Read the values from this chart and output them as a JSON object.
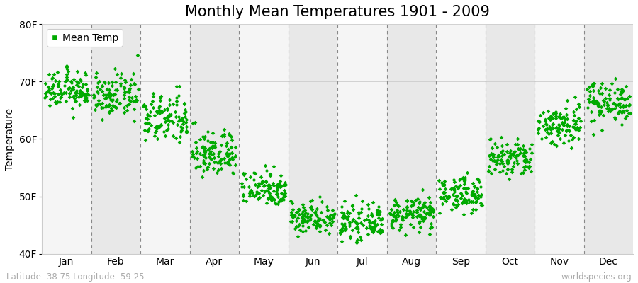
{
  "title": "Monthly Mean Temperatures 1901 - 2009",
  "ylabel": "Temperature",
  "ylim": [
    40,
    80
  ],
  "yticks": [
    40,
    50,
    60,
    70,
    80
  ],
  "ytick_labels": [
    "40F",
    "50F",
    "60F",
    "70F",
    "80F"
  ],
  "months": [
    "Jan",
    "Feb",
    "Mar",
    "Apr",
    "May",
    "Jun",
    "Jul",
    "Aug",
    "Sep",
    "Oct",
    "Nov",
    "Dec"
  ],
  "month_means_f": [
    68.5,
    67.5,
    63.5,
    57.5,
    51.5,
    46.5,
    45.5,
    47.0,
    50.5,
    56.5,
    62.5,
    66.5
  ],
  "month_stds_f": [
    1.6,
    1.8,
    2.2,
    2.0,
    1.6,
    1.4,
    1.4,
    1.4,
    1.5,
    1.7,
    1.9,
    1.8
  ],
  "n_years": 109,
  "dot_color": "#00aa00",
  "dot_size": 8,
  "background_color": "#ffffff",
  "band_color_odd": "#e8e8e8",
  "band_color_even": "#f5f5f5",
  "grid_color": "#888888",
  "title_fontsize": 15,
  "axis_fontsize": 10,
  "tick_fontsize": 10,
  "legend_label": "Mean Temp",
  "footer_left": "Latitude -38.75 Longitude -59.25",
  "footer_right": "worldspecies.org",
  "footer_fontsize": 8.5,
  "footer_color": "#aaaaaa"
}
